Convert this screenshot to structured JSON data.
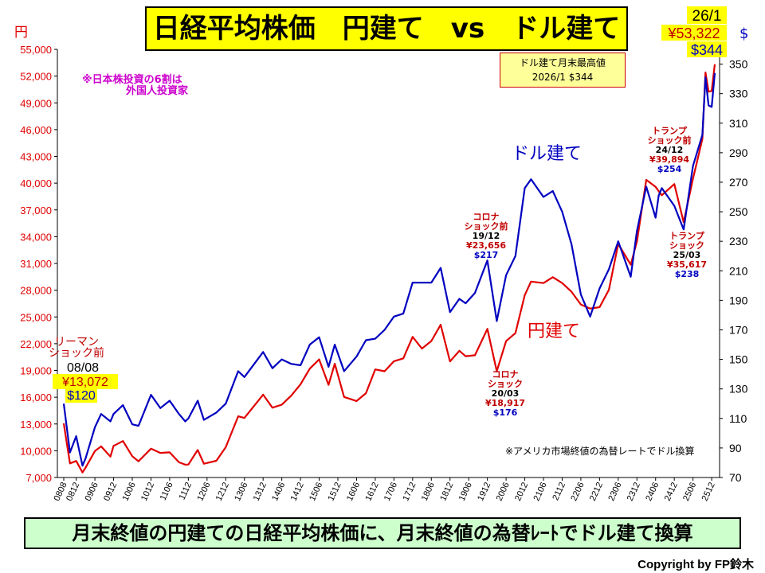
{
  "title": "日経平均株価　円建て　vs　ドル建て",
  "footer": "月末終値の円建ての日経平均株価に、月末終値の為替ﾚｰﾄでドル建て換算",
  "copyright": "Copyright by FP鈴木",
  "note_foreign": [
    "※日本株投資の6割は",
    "外国人投資家"
  ],
  "note_rate": "※アメリカ市場終値の為替レートでドル換算",
  "max_box": [
    "ドル建て月末最高値",
    "2026/1 $344"
  ],
  "colors": {
    "yen": "#e00000",
    "usd": "#0000c0",
    "left_axis": "#e00000",
    "right_axis": "#000000",
    "note_pink": "#cc00cc"
  },
  "annotations": {
    "lehman": {
      "l1": "リーマン",
      "l2": "ショック前",
      "date": "08/08",
      "yen": "¥13,072",
      "usd": "$120"
    },
    "corona_pre": {
      "l1": "コロナ",
      "l2": "ショック前",
      "date": "19/12",
      "yen": "¥23,656",
      "usd": "$217"
    },
    "corona": {
      "l1": "コロナ",
      "l2": "ショック",
      "date": "20/03",
      "yen": "¥18,917",
      "usd": "$176"
    },
    "trump_pre": {
      "l1": "トランプ",
      "l2": "ショック前",
      "date": "24/12",
      "yen": "¥39,894",
      "usd": "$254"
    },
    "trump": {
      "l1": "トランプ",
      "l2": "ショック",
      "date": "25/03",
      "yen": "¥35,617",
      "usd": "$238"
    },
    "latest": {
      "date": "26/1",
      "yen": "¥53,322",
      "usd": "$344"
    }
  },
  "chart_data": {
    "type": "line",
    "left_unit": "円",
    "right_unit": "$",
    "ylim_left": [
      7000,
      55000
    ],
    "ylim_right": [
      70,
      360
    ],
    "yticks_left": [
      "7,000",
      "10,000",
      "13,000",
      "16,000",
      "19,000",
      "22,000",
      "25,000",
      "28,000",
      "31,000",
      "34,000",
      "37,000",
      "40,000",
      "43,000",
      "46,000",
      "49,000",
      "52,000",
      "55,000"
    ],
    "yticks_right": [
      "70",
      "90",
      "110",
      "130",
      "150",
      "170",
      "190",
      "210",
      "230",
      "250",
      "270",
      "290",
      "310",
      "330",
      "350"
    ],
    "xticks": [
      "0808",
      "0812",
      "0906",
      "0912",
      "1006",
      "1012",
      "1106",
      "1112",
      "1206",
      "1212",
      "1306",
      "1312",
      "1406",
      "1412",
      "1506",
      "1512",
      "1606",
      "1612",
      "1706",
      "1712",
      "1806",
      "1812",
      "1906",
      "1912",
      "2006",
      "2012",
      "2106",
      "2112",
      "2206",
      "2212",
      "2306",
      "2312",
      "2406",
      "2412",
      "2506",
      "2512"
    ],
    "series": [
      {
        "name": "円建て",
        "axis": "left",
        "values": [
          {
            "x": "2008-08",
            "y": 13072
          },
          {
            "x": "2008-10",
            "y": 8577
          },
          {
            "x": "2008-12",
            "y": 8860
          },
          {
            "x": "2009-02",
            "y": 7568
          },
          {
            "x": "2009-03",
            "y": 8110
          },
          {
            "x": "2009-06",
            "y": 9958
          },
          {
            "x": "2009-08",
            "y": 10492
          },
          {
            "x": "2009-11",
            "y": 9346
          },
          {
            "x": "2009-12",
            "y": 10546
          },
          {
            "x": "2010-03",
            "y": 11090
          },
          {
            "x": "2010-06",
            "y": 9382
          },
          {
            "x": "2010-08",
            "y": 8824
          },
          {
            "x": "2010-12",
            "y": 10229
          },
          {
            "x": "2011-03",
            "y": 9755
          },
          {
            "x": "2011-06",
            "y": 9816
          },
          {
            "x": "2011-09",
            "y": 8700
          },
          {
            "x": "2011-11",
            "y": 8435
          },
          {
            "x": "2011-12",
            "y": 8455
          },
          {
            "x": "2012-03",
            "y": 10084
          },
          {
            "x": "2012-05",
            "y": 8543
          },
          {
            "x": "2012-09",
            "y": 8870
          },
          {
            "x": "2012-12",
            "y": 10395
          },
          {
            "x": "2013-04",
            "y": 13861
          },
          {
            "x": "2013-06",
            "y": 13677
          },
          {
            "x": "2013-12",
            "y": 16291
          },
          {
            "x": "2014-03",
            "y": 14828
          },
          {
            "x": "2014-06",
            "y": 15162
          },
          {
            "x": "2014-09",
            "y": 16173
          },
          {
            "x": "2014-12",
            "y": 17451
          },
          {
            "x": "2015-03",
            "y": 19207
          },
          {
            "x": "2015-06",
            "y": 20236
          },
          {
            "x": "2015-09",
            "y": 17388
          },
          {
            "x": "2015-11",
            "y": 19747
          },
          {
            "x": "2016-02",
            "y": 16027
          },
          {
            "x": "2016-06",
            "y": 15576
          },
          {
            "x": "2016-09",
            "y": 16450
          },
          {
            "x": "2016-12",
            "y": 19114
          },
          {
            "x": "2017-03",
            "y": 18909
          },
          {
            "x": "2017-06",
            "y": 20033
          },
          {
            "x": "2017-09",
            "y": 20356
          },
          {
            "x": "2017-12",
            "y": 22765
          },
          {
            "x": "2018-03",
            "y": 21454
          },
          {
            "x": "2018-06",
            "y": 22305
          },
          {
            "x": "2018-09",
            "y": 24120
          },
          {
            "x": "2018-12",
            "y": 20015
          },
          {
            "x": "2019-03",
            "y": 21206
          },
          {
            "x": "2019-05",
            "y": 20601
          },
          {
            "x": "2019-08",
            "y": 20704
          },
          {
            "x": "2019-12",
            "y": 23656
          },
          {
            "x": "2020-03",
            "y": 18917
          },
          {
            "x": "2020-06",
            "y": 22288
          },
          {
            "x": "2020-09",
            "y": 23185
          },
          {
            "x": "2020-12",
            "y": 27444
          },
          {
            "x": "2021-02",
            "y": 28966
          },
          {
            "x": "2021-06",
            "y": 28792
          },
          {
            "x": "2021-09",
            "y": 29453
          },
          {
            "x": "2021-12",
            "y": 28792
          },
          {
            "x": "2022-03",
            "y": 27821
          },
          {
            "x": "2022-06",
            "y": 26393
          },
          {
            "x": "2022-09",
            "y": 25937
          },
          {
            "x": "2022-12",
            "y": 26095
          },
          {
            "x": "2023-03",
            "y": 28041
          },
          {
            "x": "2023-06",
            "y": 33189
          },
          {
            "x": "2023-10",
            "y": 30859
          },
          {
            "x": "2023-12",
            "y": 33464
          },
          {
            "x": "2024-03",
            "y": 40369
          },
          {
            "x": "2024-06",
            "y": 39583
          },
          {
            "x": "2024-07",
            "y": 39102
          },
          {
            "x": "2024-08",
            "y": 38648
          },
          {
            "x": "2024-12",
            "y": 39894
          },
          {
            "x": "2025-03",
            "y": 35617
          },
          {
            "x": "2025-06",
            "y": 40487
          },
          {
            "x": "2025-09",
            "y": 44932
          },
          {
            "x": "2025-10",
            "y": 52411
          },
          {
            "x": "2025-11",
            "y": 50253
          },
          {
            "x": "2025-12",
            "y": 50339
          },
          {
            "x": "2026-01",
            "y": 53322
          }
        ]
      },
      {
        "name": "ドル建て",
        "axis": "right",
        "values": [
          {
            "x": "2008-08",
            "y": 120
          },
          {
            "x": "2008-10",
            "y": 87
          },
          {
            "x": "2008-12",
            "y": 98
          },
          {
            "x": "2009-02",
            "y": 78
          },
          {
            "x": "2009-03",
            "y": 83
          },
          {
            "x": "2009-06",
            "y": 104
          },
          {
            "x": "2009-08",
            "y": 113
          },
          {
            "x": "2009-11",
            "y": 108
          },
          {
            "x": "2009-12",
            "y": 113
          },
          {
            "x": "2010-03",
            "y": 119
          },
          {
            "x": "2010-06",
            "y": 106
          },
          {
            "x": "2010-08",
            "y": 105
          },
          {
            "x": "2010-12",
            "y": 126
          },
          {
            "x": "2011-03",
            "y": 117
          },
          {
            "x": "2011-06",
            "y": 122
          },
          {
            "x": "2011-09",
            "y": 113
          },
          {
            "x": "2011-11",
            "y": 108
          },
          {
            "x": "2011-12",
            "y": 110
          },
          {
            "x": "2012-03",
            "y": 122
          },
          {
            "x": "2012-05",
            "y": 109
          },
          {
            "x": "2012-09",
            "y": 114
          },
          {
            "x": "2012-12",
            "y": 120
          },
          {
            "x": "2013-04",
            "y": 142
          },
          {
            "x": "2013-06",
            "y": 138
          },
          {
            "x": "2013-12",
            "y": 155
          },
          {
            "x": "2014-03",
            "y": 144
          },
          {
            "x": "2014-06",
            "y": 150
          },
          {
            "x": "2014-09",
            "y": 147
          },
          {
            "x": "2014-12",
            "y": 146
          },
          {
            "x": "2015-03",
            "y": 160
          },
          {
            "x": "2015-06",
            "y": 165
          },
          {
            "x": "2015-09",
            "y": 145
          },
          {
            "x": "2015-11",
            "y": 160
          },
          {
            "x": "2016-02",
            "y": 142
          },
          {
            "x": "2016-06",
            "y": 152
          },
          {
            "x": "2016-09",
            "y": 163
          },
          {
            "x": "2016-12",
            "y": 164
          },
          {
            "x": "2017-03",
            "y": 170
          },
          {
            "x": "2017-06",
            "y": 179
          },
          {
            "x": "2017-09",
            "y": 181
          },
          {
            "x": "2017-12",
            "y": 202
          },
          {
            "x": "2018-03",
            "y": 202
          },
          {
            "x": "2018-06",
            "y": 202
          },
          {
            "x": "2018-09",
            "y": 212
          },
          {
            "x": "2018-12",
            "y": 182
          },
          {
            "x": "2019-03",
            "y": 191
          },
          {
            "x": "2019-05",
            "y": 188
          },
          {
            "x": "2019-08",
            "y": 195
          },
          {
            "x": "2019-12",
            "y": 217
          },
          {
            "x": "2020-03",
            "y": 176
          },
          {
            "x": "2020-06",
            "y": 207
          },
          {
            "x": "2020-09",
            "y": 220
          },
          {
            "x": "2020-12",
            "y": 266
          },
          {
            "x": "2021-02",
            "y": 272
          },
          {
            "x": "2021-06",
            "y": 260
          },
          {
            "x": "2021-09",
            "y": 264
          },
          {
            "x": "2021-12",
            "y": 250
          },
          {
            "x": "2022-03",
            "y": 228
          },
          {
            "x": "2022-06",
            "y": 194
          },
          {
            "x": "2022-09",
            "y": 179
          },
          {
            "x": "2022-12",
            "y": 198
          },
          {
            "x": "2023-03",
            "y": 211
          },
          {
            "x": "2023-06",
            "y": 230
          },
          {
            "x": "2023-10",
            "y": 206
          },
          {
            "x": "2023-12",
            "y": 237
          },
          {
            "x": "2024-03",
            "y": 267
          },
          {
            "x": "2024-06",
            "y": 246
          },
          {
            "x": "2024-07",
            "y": 261
          },
          {
            "x": "2024-08",
            "y": 266
          },
          {
            "x": "2024-12",
            "y": 254
          },
          {
            "x": "2025-03",
            "y": 238
          },
          {
            "x": "2025-06",
            "y": 281
          },
          {
            "x": "2025-09",
            "y": 302
          },
          {
            "x": "2025-10",
            "y": 341
          },
          {
            "x": "2025-11",
            "y": 322
          },
          {
            "x": "2025-12",
            "y": 321
          },
          {
            "x": "2026-01",
            "y": 344
          }
        ]
      }
    ],
    "series_labels_on_chart": [
      "円建て",
      "ドル建て"
    ],
    "grid": false,
    "legend": "inline"
  }
}
